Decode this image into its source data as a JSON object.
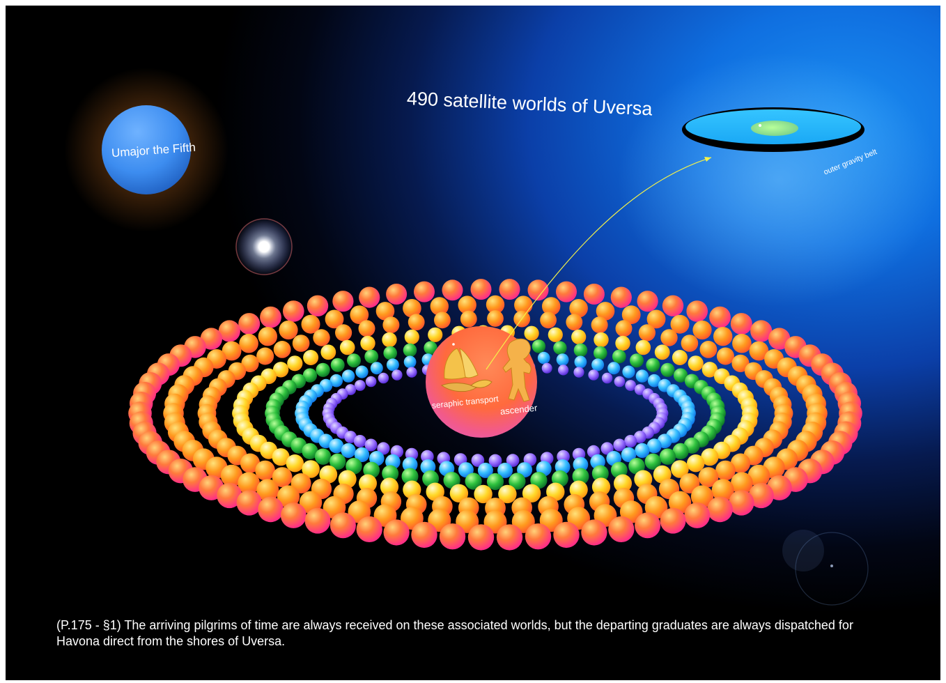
{
  "title": "490 satellite worlds of Uversa",
  "planet_label": "Umajor the Fifth",
  "belt_label": "outer gravity belt",
  "seraphic_label": "seraphic transport",
  "ascender_label": "ascender",
  "caption": "(P.175 - §1) The arriving pilgrims of time are always received on these associated worlds, but the departing graduates are always dispatched for Havona direct from the shores of Uversa.",
  "icons": [
    "seraphic-transport-icon",
    "ascender-icon",
    "star-flare-icon",
    "lens-flare-icon"
  ],
  "colors": {
    "ring_outer": "#ff3a6e",
    "ring_orange": "#ff8c1a",
    "ring_yellow": "#ffd21e",
    "ring_green": "#1fa83a",
    "ring_blue": "#22b6ff",
    "ring_violet": "#8a5cff",
    "center_sphere": "#ff6a3d",
    "arrow": "#f4f24a",
    "planet": "#3d8df0"
  }
}
